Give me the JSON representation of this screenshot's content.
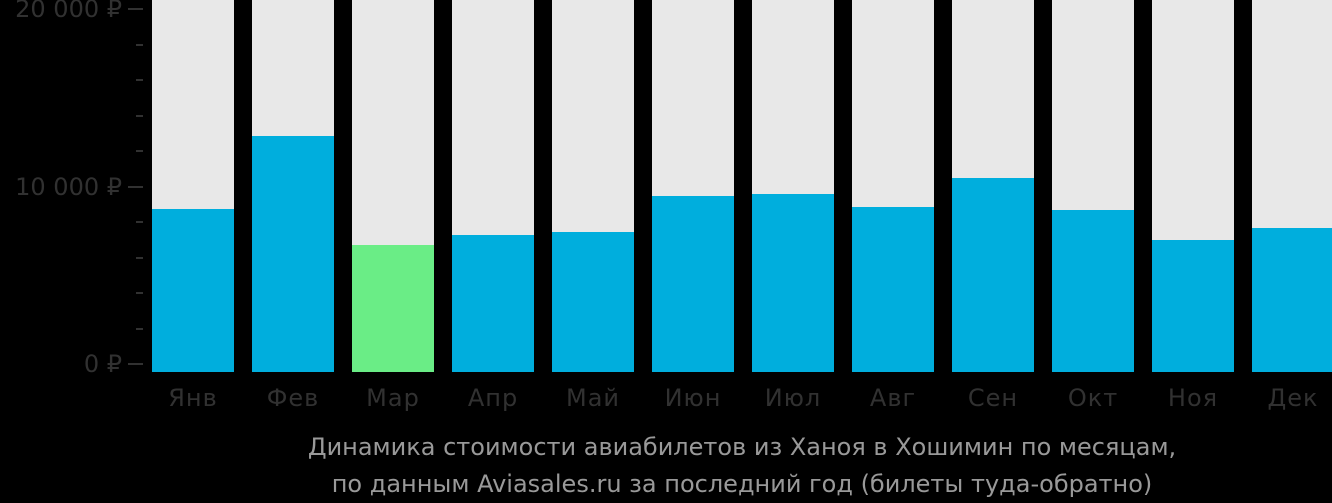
{
  "chart_data": {
    "type": "bar",
    "categories": [
      "Янв",
      "Фев",
      "Мар",
      "Апр",
      "Май",
      "Июн",
      "Июл",
      "Авг",
      "Сен",
      "Окт",
      "Ноя",
      "Дек"
    ],
    "values": [
      9000,
      13000,
      7000,
      7550,
      7700,
      9700,
      9800,
      9100,
      10700,
      8900,
      7300,
      7950
    ],
    "highlight_index": 2,
    "title": "Динамика стоимости авиабилетов из Ханоя в Хошимин по месяцам, по данным Aviasales.ru за последний год (билеты туда-обратно)",
    "xlabel": "",
    "ylabel": "",
    "ylim": [
      0,
      20000
    ],
    "ytick_minor_step": 2000,
    "ymajor_ticks": [
      {
        "value": 0,
        "label": "0 ₽"
      },
      {
        "value": 10000,
        "label": "10 000 ₽"
      },
      {
        "value": 20000,
        "label": "20 000 ₽"
      }
    ],
    "grid": false,
    "legend": null
  },
  "caption": {
    "line1": "Динамика стоимости авиабилетов из Ханоя в Хошимин по месяцам,",
    "line2": "по данным Aviasales.ru за последний год (билеты туда-обратно)"
  },
  "colors": {
    "background": "#000000",
    "bar": "#00aedd",
    "bar_highlight": "#6aed86",
    "bar_track": "#e8e8e8",
    "axis_text": "#313131",
    "caption_text": "#999999"
  }
}
